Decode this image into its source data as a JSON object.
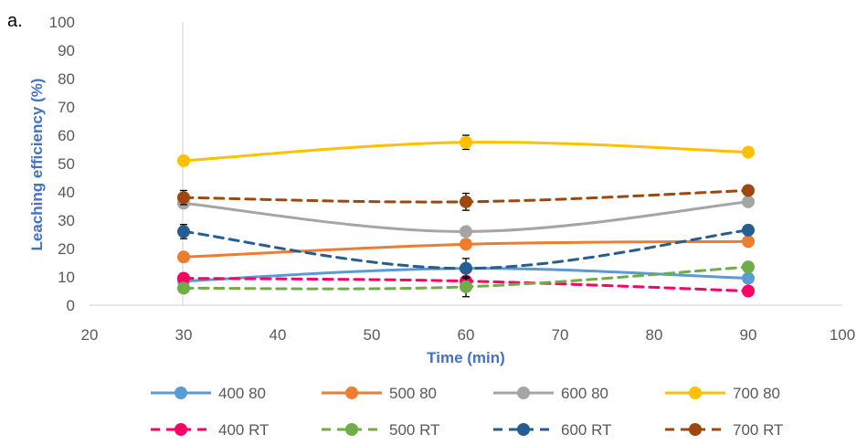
{
  "panel_label": "a.",
  "chart_data": {
    "type": "line",
    "title": "",
    "xlabel": "Time (min)",
    "ylabel": "Leaching efficiency (%)",
    "xlim": [
      20,
      100
    ],
    "ylim": [
      0,
      100
    ],
    "x_ticks": [
      "20",
      "30",
      "40",
      "50",
      "60",
      "70",
      "80",
      "90",
      "100"
    ],
    "y_ticks": [
      "0",
      "10",
      "20",
      "30",
      "40",
      "50",
      "60",
      "70",
      "80",
      "90",
      "100"
    ],
    "grid": false,
    "legend_position": "bottom",
    "x": [
      30,
      60,
      90
    ],
    "series": [
      {
        "name": "400 80",
        "values": [
          8.5,
          13,
          9.5
        ],
        "color": "#5b9bd5",
        "dashed": false,
        "error": [
          0,
          0,
          0
        ]
      },
      {
        "name": "500 80",
        "values": [
          17,
          21.5,
          22.5
        ],
        "color": "#ed7d31",
        "dashed": false,
        "error": [
          0,
          1.5,
          0
        ]
      },
      {
        "name": "600 80",
        "values": [
          36,
          26,
          36.5
        ],
        "color": "#a5a5a5",
        "dashed": false,
        "error": [
          0,
          0,
          0
        ]
      },
      {
        "name": "700 80",
        "values": [
          51,
          57.5,
          54
        ],
        "color": "#ffc000",
        "dashed": false,
        "error": [
          0,
          2.5,
          1
        ]
      },
      {
        "name": "400 RT",
        "values": [
          9.5,
          8.5,
          5
        ],
        "color": "#ff0066",
        "dashed": true,
        "error": [
          0,
          0,
          0
        ]
      },
      {
        "name": "500 RT",
        "values": [
          6,
          6.5,
          13.5
        ],
        "color": "#70ad47",
        "dashed": true,
        "error": [
          0,
          3.5,
          1.5
        ]
      },
      {
        "name": "600 RT",
        "values": [
          26,
          13,
          26.5
        ],
        "color": "#255e91",
        "dashed": true,
        "error": [
          2.5,
          3.5,
          0
        ]
      },
      {
        "name": "700 RT",
        "values": [
          38,
          36.5,
          40.5
        ],
        "color": "#9e480e",
        "dashed": true,
        "error": [
          2.5,
          3,
          0
        ]
      }
    ]
  }
}
